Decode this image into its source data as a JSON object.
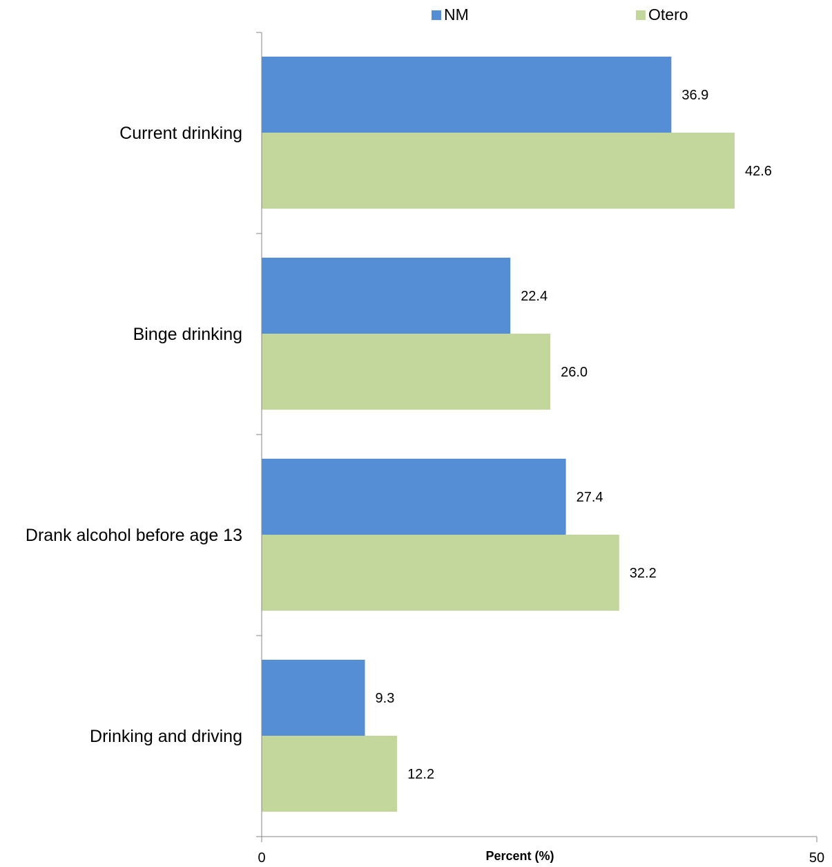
{
  "chart_data": {
    "type": "bar",
    "orientation": "horizontal",
    "categories": [
      "Current drinking",
      "Binge drinking",
      "Drank alcohol before age 13",
      "Drinking and driving"
    ],
    "series": [
      {
        "name": "NM",
        "values": [
          36.9,
          22.4,
          27.4,
          9.3
        ],
        "color": "#558ED5"
      },
      {
        "name": "Otero",
        "values": [
          42.6,
          26.0,
          32.2,
          12.2
        ],
        "color": "#C3D69B"
      }
    ],
    "value_labels": [
      [
        "36.9",
        "22.4",
        "27.4",
        "9.3"
      ],
      [
        "42.6",
        "26.0",
        "32.2",
        "12.2"
      ]
    ],
    "xlabel": "Percent (%)",
    "xlim": [
      0,
      50
    ],
    "x_ticks": [
      "0",
      "50"
    ],
    "legend_position": "top",
    "grid": false
  }
}
